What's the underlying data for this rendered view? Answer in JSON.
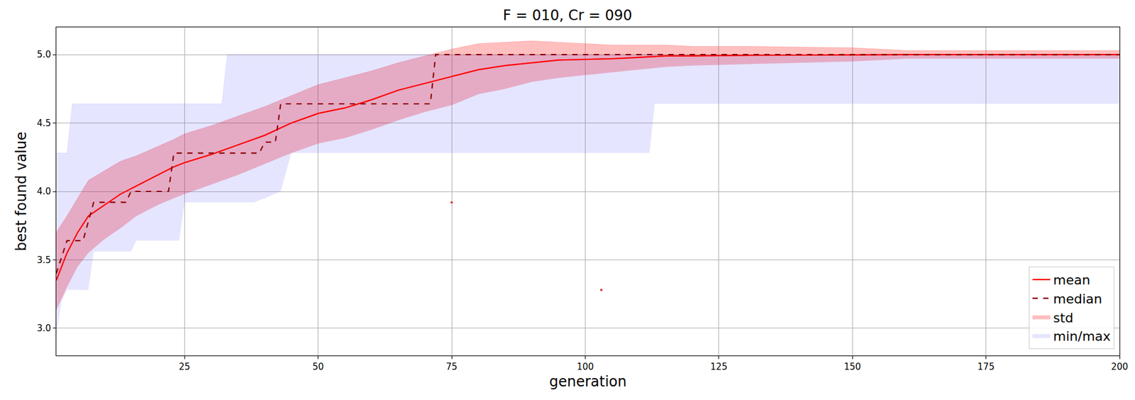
{
  "chart_data": {
    "type": "line",
    "title": "F = 010, Cr = 090",
    "x_label": "generation",
    "y_label": "best found value",
    "xlim": [
      1,
      200
    ],
    "xticks": [
      25,
      50,
      75,
      100,
      125,
      150,
      175,
      200
    ],
    "ylim": [
      2.8,
      5.2
    ],
    "yticks": [
      {
        "value": 3,
        "label": "3.0"
      },
      3.5,
      {
        "value": 4,
        "label": "4.0"
      },
      4.5,
      {
        "value": 5,
        "label": "5.0"
      }
    ],
    "grid": true,
    "legend": "lower right",
    "series": [
      {
        "name": "mean",
        "type": "line",
        "color": "#ff0000",
        "line_style": "solid",
        "x": [
          1,
          3,
          5,
          7,
          10,
          13,
          16,
          20,
          23,
          25,
          30,
          35,
          40,
          45,
          50,
          55,
          60,
          65,
          70,
          75,
          80,
          85,
          90,
          95,
          100,
          105,
          110,
          115,
          120,
          130,
          150,
          160,
          200
        ],
        "values": [
          3.35,
          3.55,
          3.7,
          3.82,
          3.9,
          3.98,
          4.04,
          4.12,
          4.18,
          4.21,
          4.27,
          4.34,
          4.41,
          4.5,
          4.57,
          4.61,
          4.67,
          4.74,
          4.79,
          4.84,
          4.89,
          4.92,
          4.94,
          4.96,
          4.965,
          4.97,
          4.98,
          4.99,
          4.99,
          4.995,
          4.998,
          5.0,
          5.0
        ]
      },
      {
        "name": "median",
        "type": "line",
        "color": "#8b0000",
        "line_style": "dashed",
        "x": [
          1,
          3,
          6,
          8,
          14,
          15,
          22,
          23,
          39,
          40,
          42,
          43,
          71,
          72,
          200
        ],
        "values": [
          3.4,
          3.64,
          3.64,
          3.92,
          3.92,
          4.0,
          4.0,
          4.28,
          4.28,
          4.36,
          4.36,
          4.64,
          4.64,
          5.0,
          5.0
        ]
      },
      {
        "name": "std",
        "type": "band",
        "color": "#ff0000",
        "x": [
          1,
          3,
          5,
          7,
          10,
          13,
          16,
          20,
          23,
          25,
          30,
          35,
          40,
          45,
          50,
          55,
          60,
          65,
          70,
          75,
          80,
          85,
          90,
          95,
          100,
          105,
          110,
          115,
          120,
          130,
          150,
          160,
          200
        ],
        "lower": [
          3.13,
          3.3,
          3.45,
          3.55,
          3.65,
          3.73,
          3.82,
          3.9,
          3.95,
          3.98,
          4.05,
          4.12,
          4.2,
          4.28,
          4.35,
          4.39,
          4.45,
          4.52,
          4.58,
          4.63,
          4.71,
          4.75,
          4.8,
          4.83,
          4.85,
          4.87,
          4.89,
          4.91,
          4.92,
          4.93,
          4.95,
          4.97,
          4.97
        ],
        "upper": [
          3.7,
          3.82,
          3.95,
          4.08,
          4.15,
          4.22,
          4.26,
          4.33,
          4.38,
          4.42,
          4.48,
          4.55,
          4.62,
          4.7,
          4.78,
          4.83,
          4.88,
          4.94,
          4.99,
          5.04,
          5.08,
          5.09,
          5.1,
          5.09,
          5.08,
          5.07,
          5.07,
          5.07,
          5.06,
          5.06,
          5.05,
          5.03,
          5.03
        ]
      },
      {
        "name": "min/max",
        "type": "band",
        "color": "#0000ff",
        "x": [
          1,
          2,
          3,
          4,
          5,
          7,
          8,
          15,
          16,
          24,
          25,
          32,
          33,
          38,
          40,
          43,
          45,
          112,
          113,
          200
        ],
        "lower": [
          2.95,
          3.2,
          3.28,
          3.28,
          3.28,
          3.28,
          3.56,
          3.56,
          3.64,
          3.64,
          3.92,
          3.92,
          3.92,
          3.92,
          3.95,
          4.0,
          4.28,
          4.28,
          4.64,
          4.64
        ],
        "upper": [
          4.28,
          4.28,
          4.28,
          4.64,
          4.64,
          4.64,
          4.64,
          4.64,
          4.64,
          4.64,
          4.64,
          4.64,
          5.0,
          5.0,
          5.0,
          5.0,
          5.0,
          5.0,
          5.0,
          5.0
        ]
      },
      {
        "type": "scatter",
        "color": "#e03030",
        "marker": "circle",
        "x": [
          75,
          103
        ],
        "values": [
          3.92,
          3.28
        ]
      }
    ]
  }
}
